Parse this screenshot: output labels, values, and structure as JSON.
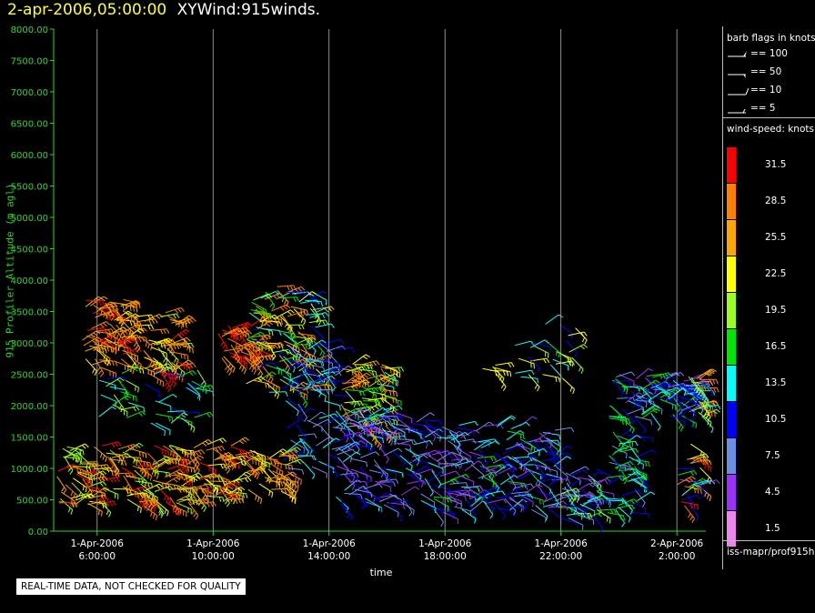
{
  "header": {
    "timestamp": "2-apr-2006,05:00:00",
    "name": "XYWind:915winds."
  },
  "chart_data": {
    "type": "scatter",
    "ylabel": "915 Profiler Altitude (m agl)",
    "xlabel": "time",
    "ylim": [
      0,
      8000
    ],
    "yticks": [
      "0.00",
      "500.00",
      "1000.00",
      "1500.00",
      "2000.00",
      "2500.00",
      "3000.00",
      "3500.00",
      "4000.00",
      "4500.00",
      "5000.00",
      "5500.00",
      "6000.00",
      "6500.00",
      "7000.00",
      "7500.00",
      "8000.00"
    ],
    "xlim_hours": [
      4.5,
      27
    ],
    "xticks": [
      {
        "hour": 6,
        "line1": "1-Apr-2006",
        "line2": "6:00:00"
      },
      {
        "hour": 10,
        "line1": "1-Apr-2006",
        "line2": "10:00:00"
      },
      {
        "hour": 14,
        "line1": "1-Apr-2006",
        "line2": "14:00:00"
      },
      {
        "hour": 18,
        "line1": "1-Apr-2006",
        "line2": "18:00:00"
      },
      {
        "hour": 22,
        "line1": "1-Apr-2006",
        "line2": "22:00:00"
      },
      {
        "hour": 26,
        "line1": "2-Apr-2006",
        "line2": "2:00:00"
      }
    ],
    "grid": "vertical",
    "clusters": [
      {
        "t": [
          5.4,
          7.5
        ],
        "z": [
          2600,
          3700
        ],
        "spd": [
          22,
          32
        ],
        "n": 80
      },
      {
        "t": [
          7.6,
          8.8
        ],
        "z": [
          2500,
          3500
        ],
        "spd": [
          20,
          32
        ],
        "n": 45
      },
      {
        "t": [
          5.8,
          9.5
        ],
        "z": [
          1700,
          2600
        ],
        "spd": [
          9,
          20
        ],
        "n": 40
      },
      {
        "t": [
          4.6,
          10.8
        ],
        "z": [
          400,
          1400
        ],
        "spd": [
          18,
          32
        ],
        "n": 200
      },
      {
        "t": [
          10.1,
          11.6
        ],
        "z": [
          2700,
          3300
        ],
        "spd": [
          26,
          32
        ],
        "n": 40
      },
      {
        "t": [
          11.1,
          13.6
        ],
        "z": [
          2200,
          3900
        ],
        "spd": [
          11,
          30
        ],
        "n": 110
      },
      {
        "t": [
          12.4,
          14.3
        ],
        "z": [
          1000,
          3000
        ],
        "spd": [
          6,
          14
        ],
        "n": 80
      },
      {
        "t": [
          11.0,
          12.6
        ],
        "z": [
          600,
          1300
        ],
        "spd": [
          18,
          30
        ],
        "n": 40
      },
      {
        "t": [
          14.4,
          16.0
        ],
        "z": [
          1500,
          2700
        ],
        "spd": [
          12,
          30
        ],
        "n": 70
      },
      {
        "t": [
          14.2,
          17.5
        ],
        "z": [
          400,
          1900
        ],
        "spd": [
          3,
          14
        ],
        "n": 140
      },
      {
        "t": [
          17.5,
          21.9
        ],
        "z": [
          300,
          1700
        ],
        "spd": [
          3,
          16
        ],
        "n": 180
      },
      {
        "t": [
          20.4,
          22.5
        ],
        "z": [
          2300,
          3300
        ],
        "spd": [
          10,
          24
        ],
        "n": 25
      },
      {
        "t": [
          19.0,
          19.8
        ],
        "z": [
          2500,
          2700
        ],
        "spd": [
          22,
          24
        ],
        "n": 6
      },
      {
        "t": [
          22.0,
          23.3
        ],
        "z": [
          200,
          1000
        ],
        "spd": [
          3,
          22
        ],
        "n": 50
      },
      {
        "t": [
          23.5,
          24.7
        ],
        "z": [
          200,
          1600
        ],
        "spd": [
          8,
          18
        ],
        "n": 50
      },
      {
        "t": [
          23.6,
          26.6
        ],
        "z": [
          1800,
          2500
        ],
        "spd": [
          5,
          18
        ],
        "n": 80
      },
      {
        "t": [
          25.2,
          26.9
        ],
        "z": [
          2100,
          2400
        ],
        "spd": [
          10,
          14
        ],
        "n": 25
      },
      {
        "t": [
          26.0,
          27.0
        ],
        "z": [
          400,
          1400
        ],
        "spd": [
          3,
          32
        ],
        "n": 30
      },
      {
        "t": [
          26.4,
          27.0
        ],
        "z": [
          1800,
          2500
        ],
        "spd": [
          5,
          30
        ],
        "n": 30
      }
    ]
  },
  "legend": {
    "barb_title": "barb flags in knots",
    "barbs": [
      {
        "label": "== 100",
        "kind": "flag"
      },
      {
        "label": "== 50",
        "kind": "flag"
      },
      {
        "label": "== 10",
        "kind": "full"
      },
      {
        "label": "== 5",
        "kind": "half"
      }
    ],
    "speed_title": "wind-speed: knots",
    "bins": [
      {
        "label": "31.5",
        "color": "#ff0000"
      },
      {
        "label": "28.5",
        "color": "#ff7f00"
      },
      {
        "label": "25.5",
        "color": "#ffa500"
      },
      {
        "label": "22.5",
        "color": "#ffff00"
      },
      {
        "label": "19.5",
        "color": "#9aff1e"
      },
      {
        "label": "16.5",
        "color": "#00e600"
      },
      {
        "label": "13.5",
        "color": "#00ffff"
      },
      {
        "label": "10.5",
        "color": "#0000ff"
      },
      {
        "label": "7.5",
        "color": "#6a8fe8"
      },
      {
        "label": "4.5",
        "color": "#9b30ff"
      },
      {
        "label": "1.5",
        "color": "#ee82ee"
      }
    ],
    "source": "iss-mapr/prof915h"
  },
  "note": "REAL-TIME DATA, NOT CHECKED FOR QUALITY"
}
